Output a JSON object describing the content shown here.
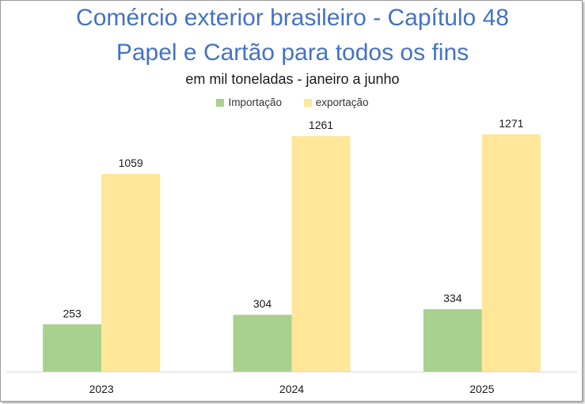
{
  "chart_data": {
    "type": "bar",
    "title": "Comércio exterior brasileiro - Capítulo 48",
    "title_line2": "Papel e Cartão para todos os fins",
    "subtitle": "em mil toneladas - janeiro a junho",
    "categories": [
      "2023",
      "2024",
      "2025"
    ],
    "series": [
      {
        "name": "Importação",
        "color": "#A9D18E",
        "values": [
          253,
          304,
          334
        ]
      },
      {
        "name": "exportação",
        "color": "#FFE699",
        "values": [
          1059,
          1261,
          1271
        ]
      }
    ],
    "ylim": [
      0,
      1300
    ],
    "legend_position": "top-center",
    "grid": false
  }
}
